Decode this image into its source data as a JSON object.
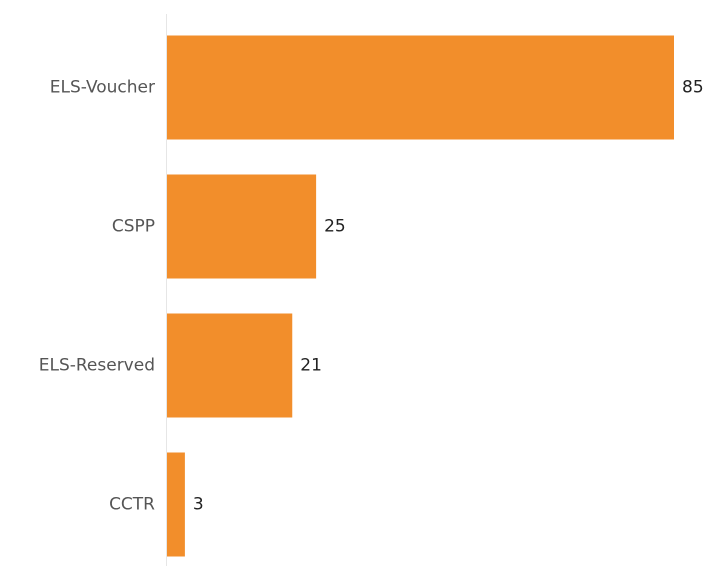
{
  "chart_data": {
    "type": "bar",
    "orientation": "horizontal",
    "categories": [
      "ELS-Voucher",
      "CSPP",
      "ELS-Reserved",
      "CCTR"
    ],
    "values": [
      85,
      25,
      21,
      3
    ],
    "color": "#f28e2b"
  }
}
